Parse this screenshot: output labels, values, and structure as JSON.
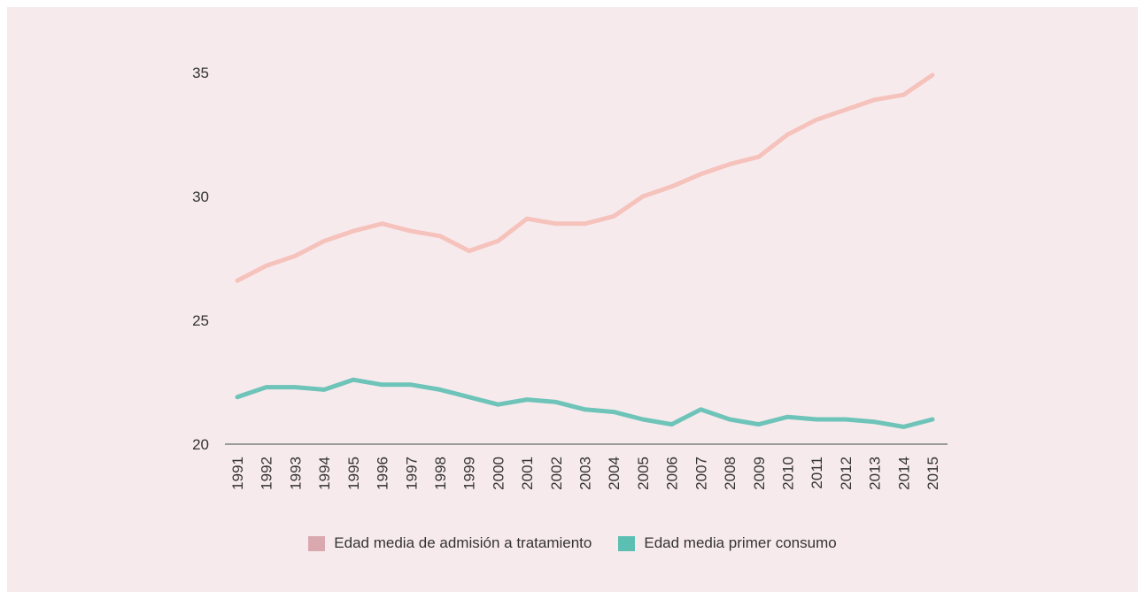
{
  "chart_data": {
    "type": "line",
    "x": [
      1991,
      1992,
      1993,
      1994,
      1995,
      1996,
      1997,
      1998,
      1999,
      2000,
      2001,
      2002,
      2003,
      2004,
      2005,
      2006,
      2007,
      2008,
      2009,
      2010,
      2011,
      2012,
      2013,
      2014,
      2015
    ],
    "x_tick_labels": [
      "1991",
      "1992",
      "1993",
      "1994",
      "1995",
      "1996",
      "1997",
      "1998",
      "1999",
      "2000",
      "2001",
      "2002",
      "2003",
      "2004",
      "2005",
      "2006",
      "2007",
      "2008",
      "2009",
      "2010",
      "2011",
      "2012",
      "2013",
      "2014",
      "2015"
    ],
    "y_ticks": [
      20,
      25,
      30,
      35
    ],
    "y_tick_labels": [
      "20",
      "25",
      "30",
      "35"
    ],
    "ylim": [
      20,
      35
    ],
    "grid": false,
    "legend_position": "bottom",
    "series": [
      {
        "name": "Edad media de admisión a tratamiento",
        "color": "#f6c2bc",
        "legend_color": "#d9a9af",
        "values": [
          26.6,
          27.2,
          27.6,
          28.2,
          28.6,
          28.9,
          28.6,
          28.4,
          27.8,
          28.2,
          29.1,
          28.9,
          28.9,
          29.2,
          30.0,
          30.4,
          30.9,
          31.3,
          31.6,
          32.5,
          33.1,
          33.5,
          33.9,
          34.1,
          34.9
        ]
      },
      {
        "name": "Edad media primer consumo",
        "color": "#6ec4b8",
        "legend_color": "#5bbfb2",
        "values": [
          21.9,
          22.3,
          22.3,
          22.2,
          22.6,
          22.4,
          22.4,
          22.2,
          21.9,
          21.6,
          21.8,
          21.7,
          21.4,
          21.3,
          21.0,
          20.8,
          21.4,
          21.0,
          20.8,
          21.1,
          21.0,
          21.0,
          20.9,
          20.7,
          21.0
        ]
      }
    ]
  }
}
